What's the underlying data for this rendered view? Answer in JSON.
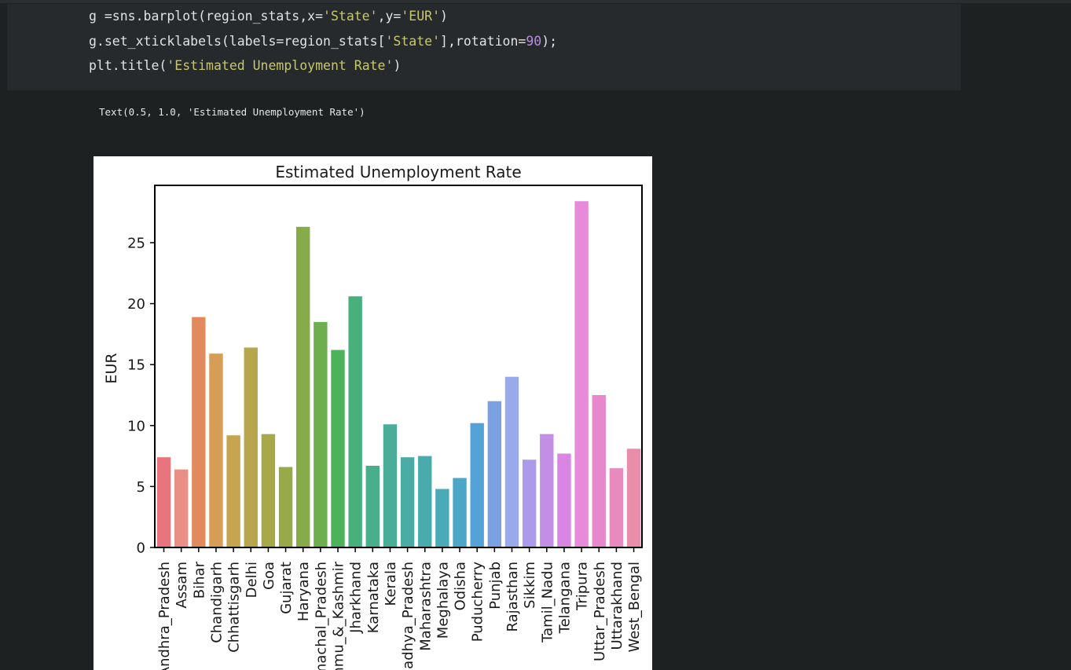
{
  "code": {
    "line1": [
      {
        "t": "g =sns.barplot(region_stats,x=",
        "c": ""
      },
      {
        "t": "'State'",
        "c": "str"
      },
      {
        "t": ",y=",
        "c": ""
      },
      {
        "t": "'EUR'",
        "c": "str"
      },
      {
        "t": ")",
        "c": ""
      }
    ],
    "line2": [
      {
        "t": "g.set_xticklabels(labels=region_stats[",
        "c": ""
      },
      {
        "t": "'State'",
        "c": "str"
      },
      {
        "t": "],rotation=",
        "c": ""
      },
      {
        "t": "90",
        "c": "num"
      },
      {
        "t": ");",
        "c": ""
      }
    ],
    "line3": [
      {
        "t": "plt.title(",
        "c": ""
      },
      {
        "t": "'Estimated Unemployment Rate'",
        "c": "str"
      },
      {
        "t": ")",
        "c": ""
      }
    ]
  },
  "output": {
    "text": "Text(0.5, 1.0, 'Estimated Unemployment Rate')"
  },
  "chart_data": {
    "type": "bar",
    "title": "Estimated Unemployment Rate",
    "xlabel": "",
    "ylabel": "EUR",
    "ylim": [
      0,
      29.7
    ],
    "yticks": [
      0,
      5,
      10,
      15,
      20,
      25
    ],
    "grid": false,
    "categories": [
      "Andhra_Pradesh",
      "Assam",
      "Bihar",
      "Chandigarh",
      "Chhattisgarh",
      "Delhi",
      "Goa",
      "Gujarat",
      "Haryana",
      "Himachal_Pradesh",
      "Jammu_&_Kashmir",
      "Jharkhand",
      "Karnataka",
      "Kerala",
      "Madhya_Pradesh",
      "Maharashtra",
      "Meghalaya",
      "Odisha",
      "Puducherry",
      "Punjab",
      "Rajasthan",
      "Sikkim",
      "Tamil_Nadu",
      "Telangana",
      "Tripura",
      "Uttar_Pradesh",
      "Uttarakhand",
      "West_Bengal"
    ],
    "values": [
      7.4,
      6.4,
      18.9,
      15.9,
      9.2,
      16.4,
      9.3,
      6.6,
      26.3,
      18.5,
      16.2,
      20.6,
      6.7,
      10.1,
      7.4,
      7.5,
      4.8,
      5.7,
      10.2,
      12.0,
      14.0,
      7.2,
      9.3,
      7.7,
      28.4,
      12.5,
      6.5,
      8.1
    ],
    "colors": [
      "#e8757e",
      "#e98f85",
      "#e18a5e",
      "#d59d55",
      "#c7a54f",
      "#b8a64e",
      "#a8a84a",
      "#98a94a",
      "#86ac4a",
      "#6daf4e",
      "#4cb35a",
      "#48b07c",
      "#49ae8c",
      "#4aad98",
      "#4aaca4",
      "#4aabad",
      "#4aaab8",
      "#4ca7c6",
      "#53a2d8",
      "#7aa2e3",
      "#9aa8ec",
      "#ab9bea",
      "#c38fe6",
      "#d885e4",
      "#e68ad9",
      "#e788cc",
      "#e88abd",
      "#e88eaa"
    ]
  }
}
